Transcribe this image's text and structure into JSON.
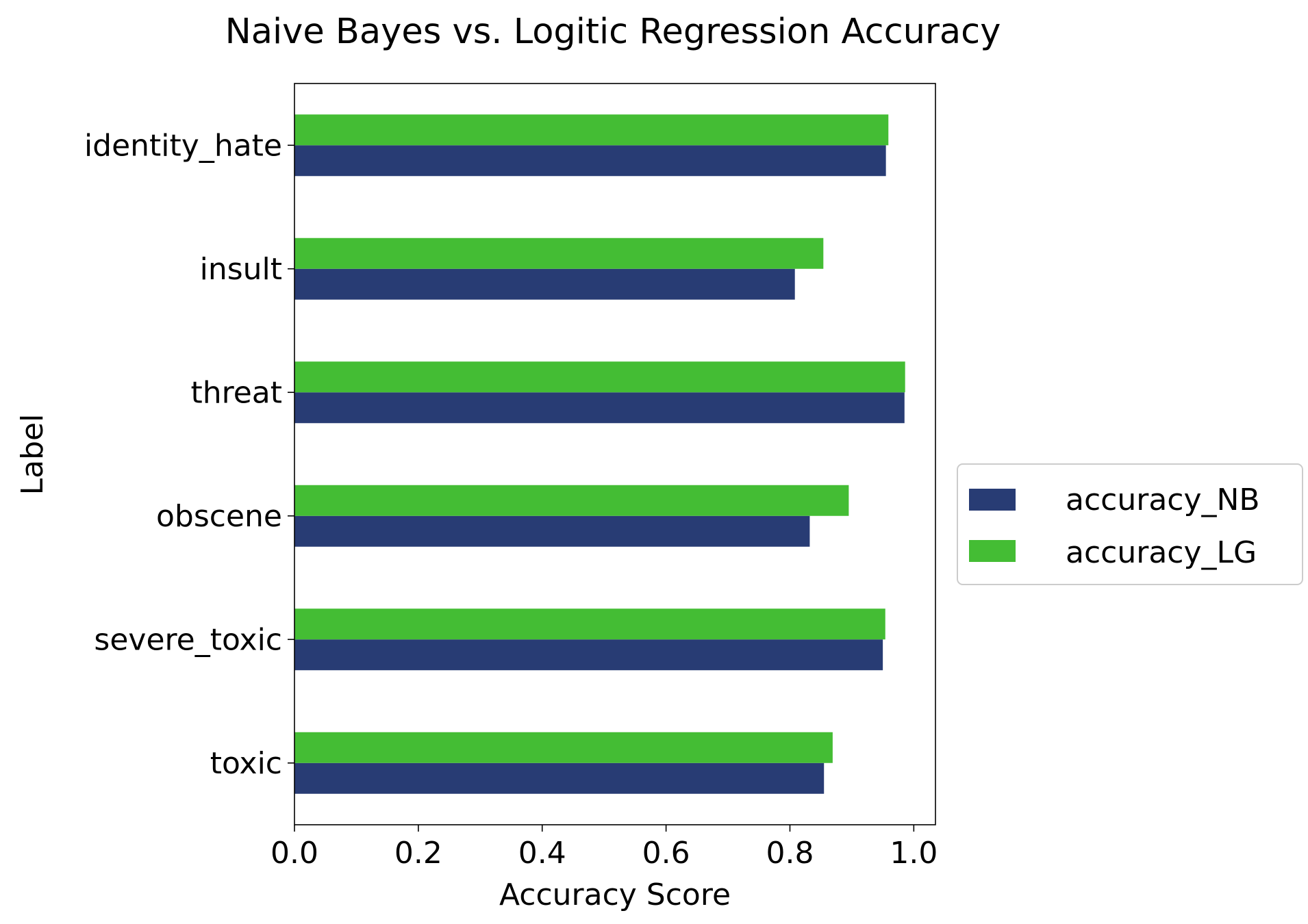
{
  "chart_data": {
    "type": "bar",
    "orientation": "horizontal",
    "title": "Naive Bayes vs. Logitic Regression Accuracy",
    "xlabel": "Accuracy Score",
    "ylabel": "Label",
    "categories": [
      "toxic",
      "severe_toxic",
      "obscene",
      "threat",
      "insult",
      "identity_hate"
    ],
    "series": [
      {
        "name": "accuracy_NB",
        "color": "#283c74",
        "values": [
          0.855,
          0.95,
          0.832,
          0.985,
          0.808,
          0.955
        ]
      },
      {
        "name": "accuracy_LG",
        "color": "#44bd34",
        "values": [
          0.869,
          0.954,
          0.895,
          0.986,
          0.854,
          0.959
        ]
      }
    ],
    "xlim": [
      0,
      1.035
    ],
    "xticks": [
      "0.0",
      "0.2",
      "0.4",
      "0.6",
      "0.8",
      "1.0"
    ],
    "grid": false,
    "legend": {
      "position": "center-right",
      "entries": [
        "accuracy_NB",
        "accuracy_LG"
      ]
    }
  }
}
